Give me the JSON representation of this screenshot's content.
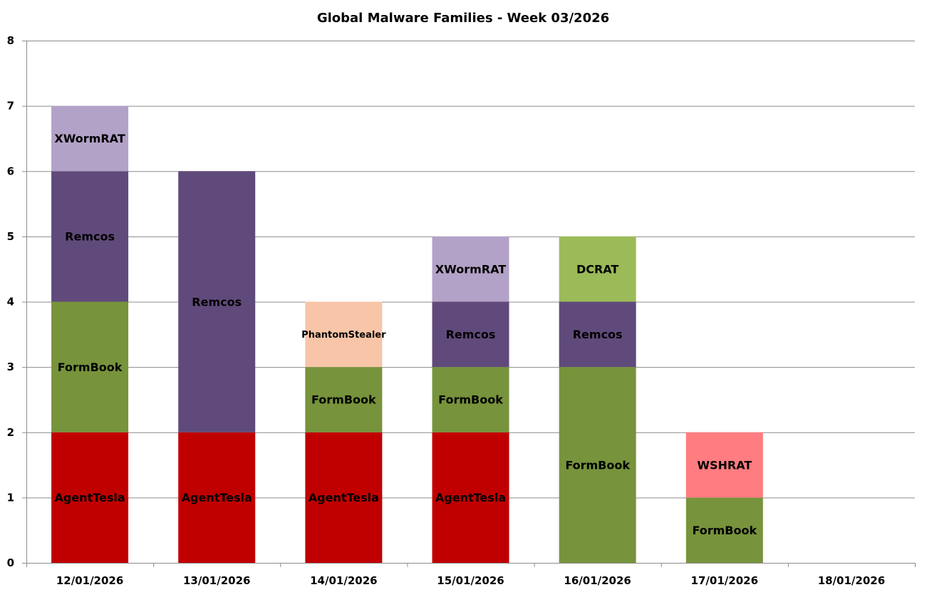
{
  "chart_data": {
    "type": "bar",
    "stacked": true,
    "title": "Global Malware Families - Week 03/2026",
    "xlabel": "",
    "ylabel": "",
    "ylim": [
      0,
      8
    ],
    "yticks": [
      "0",
      "1",
      "2",
      "3",
      "4",
      "5",
      "6",
      "7",
      "8"
    ],
    "grid": true,
    "legend": "none",
    "categories": [
      "12/01/2026",
      "13/01/2026",
      "14/01/2026",
      "15/01/2026",
      "16/01/2026",
      "17/01/2026",
      "18/01/2026"
    ],
    "stacks": [
      [
        {
          "label": "AgentTesla",
          "value": 2,
          "color": "#c00000"
        },
        {
          "label": "FormBook",
          "value": 2,
          "color": "#77933c"
        },
        {
          "label": "Remcos",
          "value": 2,
          "color": "#604a7b"
        },
        {
          "label": "XWormRAT",
          "value": 1,
          "color": "#b3a2c7"
        }
      ],
      [
        {
          "label": "AgentTesla",
          "value": 2,
          "color": "#c00000"
        },
        {
          "label": "Remcos",
          "value": 4,
          "color": "#604a7b"
        }
      ],
      [
        {
          "label": "AgentTesla",
          "value": 2,
          "color": "#c00000"
        },
        {
          "label": "FormBook",
          "value": 1,
          "color": "#77933c"
        },
        {
          "label": "PhantomStealer",
          "value": 1,
          "color": "#f8c5a8"
        }
      ],
      [
        {
          "label": "AgentTesla",
          "value": 2,
          "color": "#c00000"
        },
        {
          "label": "FormBook",
          "value": 1,
          "color": "#77933c"
        },
        {
          "label": "Remcos",
          "value": 1,
          "color": "#604a7b"
        },
        {
          "label": "XWormRAT",
          "value": 1,
          "color": "#b3a2c7"
        }
      ],
      [
        {
          "label": "FormBook",
          "value": 3,
          "color": "#77933c"
        },
        {
          "label": "Remcos",
          "value": 1,
          "color": "#604a7b"
        },
        {
          "label": "DCRAT",
          "value": 1,
          "color": "#9bbb59"
        }
      ],
      [
        {
          "label": "FormBook",
          "value": 1,
          "color": "#77933c"
        },
        {
          "label": "WSHRAT",
          "value": 1,
          "color": "#ff7c80"
        }
      ],
      []
    ]
  }
}
